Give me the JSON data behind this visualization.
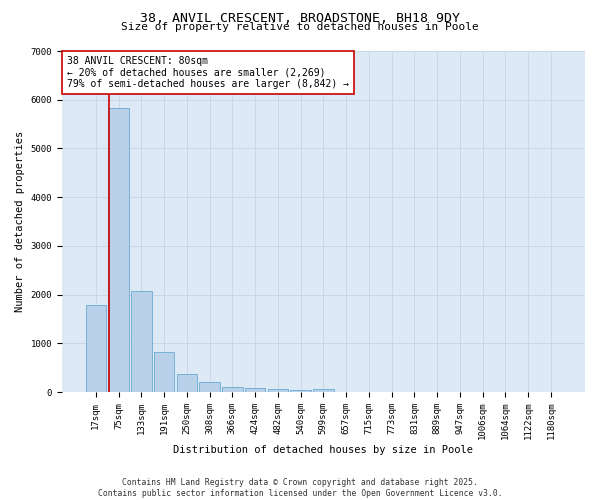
{
  "title_line1": "38, ANVIL CRESCENT, BROADSTONE, BH18 9DY",
  "title_line2": "Size of property relative to detached houses in Poole",
  "xlabel": "Distribution of detached houses by size in Poole",
  "ylabel": "Number of detached properties",
  "bar_color": "#b8d0e8",
  "bar_edge_color": "#6aaad4",
  "grid_color": "#c8d8ea",
  "background_color": "#ddeaf5",
  "categories": [
    "17sqm",
    "75sqm",
    "133sqm",
    "191sqm",
    "250sqm",
    "308sqm",
    "366sqm",
    "424sqm",
    "482sqm",
    "540sqm",
    "599sqm",
    "657sqm",
    "715sqm",
    "773sqm",
    "831sqm",
    "889sqm",
    "947sqm",
    "1006sqm",
    "1064sqm",
    "1122sqm",
    "1180sqm"
  ],
  "values": [
    1780,
    5820,
    2080,
    820,
    370,
    215,
    100,
    80,
    70,
    50,
    55,
    0,
    0,
    0,
    0,
    0,
    0,
    0,
    0,
    0,
    0
  ],
  "ylim": [
    0,
    7000
  ],
  "yticks": [
    0,
    1000,
    2000,
    3000,
    4000,
    5000,
    6000,
    7000
  ],
  "vline_x_index": 1,
  "property_label": "38 ANVIL CRESCENT: 80sqm",
  "annotation_line2": "← 20% of detached houses are smaller (2,269)",
  "annotation_line3": "79% of semi-detached houses are larger (8,842) →",
  "annotation_box_color": "#cc0000",
  "vline_color": "#cc0000",
  "footer_line1": "Contains HM Land Registry data © Crown copyright and database right 2025.",
  "footer_line2": "Contains public sector information licensed under the Open Government Licence v3.0.",
  "title_fontsize": 9.5,
  "subtitle_fontsize": 8,
  "axis_label_fontsize": 7.5,
  "tick_fontsize": 6.5,
  "annotation_fontsize": 7,
  "footer_fontsize": 5.8
}
